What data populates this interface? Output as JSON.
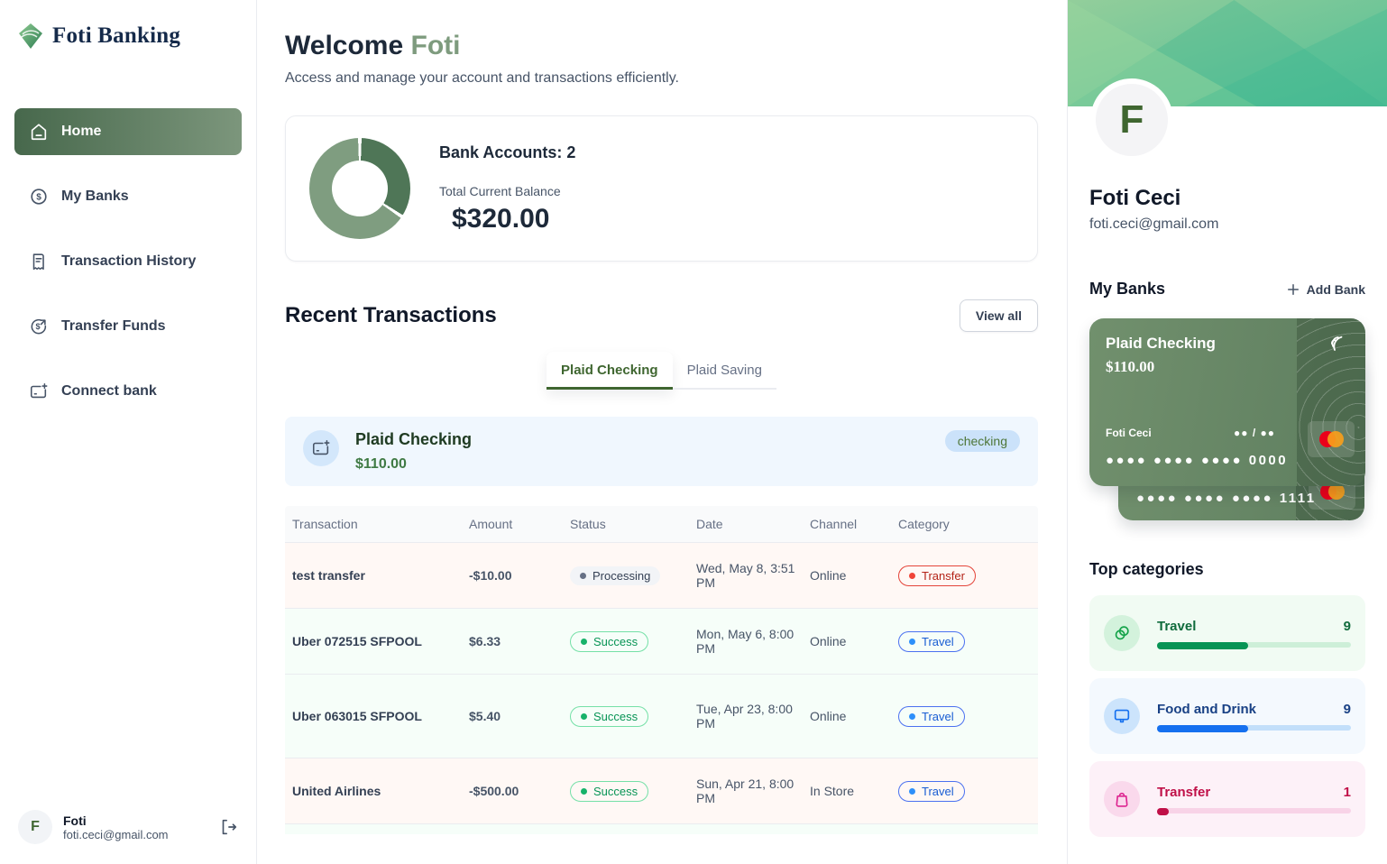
{
  "brand": {
    "name": "Foti Banking"
  },
  "sidebar": {
    "items": [
      {
        "label": "Home",
        "active": true
      },
      {
        "label": "My Banks",
        "active": false
      },
      {
        "label": "Transaction History",
        "active": false
      },
      {
        "label": "Transfer Funds",
        "active": false
      },
      {
        "label": "Connect bank",
        "active": false
      }
    ],
    "user": {
      "initial": "F",
      "name": "Foti",
      "email": "foti.ceci@gmail.com"
    }
  },
  "header": {
    "greeting": "Welcome",
    "username": "Foti",
    "subtitle": "Access and manage your account and transactions efficiently."
  },
  "balance_card": {
    "accounts_label": "Bank Accounts: 2",
    "balance_label": "Total Current Balance",
    "balance": "$320.00"
  },
  "chart_data": {
    "type": "pie",
    "title": "Total Current Balance donut",
    "labels": [
      "Plaid Checking",
      "Plaid Saving"
    ],
    "values": [
      110,
      210
    ],
    "colors": [
      "#4F7657",
      "#7F9D80"
    ],
    "total": 320
  },
  "transactions_section": {
    "title": "Recent Transactions",
    "view_all_label": "View all",
    "tabs": [
      {
        "label": "Plaid Checking",
        "active": true
      },
      {
        "label": "Plaid Saving",
        "active": false
      }
    ]
  },
  "account_banner": {
    "name": "Plaid Checking",
    "balance": "$110.00",
    "badge": "checking"
  },
  "table": {
    "columns": [
      "Transaction",
      "Amount",
      "Status",
      "Date",
      "Channel",
      "Category"
    ],
    "rows": [
      {
        "name": "test transfer",
        "amount": "-$10.00",
        "status": "Processing",
        "date": "Wed, May 8, 3:51 PM",
        "channel": "Online",
        "category": "Transfer"
      },
      {
        "name": "Uber 072515 SFPOOL",
        "amount": "$6.33",
        "status": "Success",
        "date": "Mon, May 6, 8:00 PM",
        "channel": "Online",
        "category": "Travel"
      },
      {
        "name": "Uber 063015 SFPOOL",
        "amount": "$5.40",
        "status": "Success",
        "date": "Tue, Apr 23, 8:00 PM",
        "channel": "Online",
        "category": "Travel"
      },
      {
        "name": "United Airlines",
        "amount": "-$500.00",
        "status": "Success",
        "date": "Sun, Apr 21, 8:00 PM",
        "channel": "In Store",
        "category": "Travel"
      }
    ]
  },
  "right_panel": {
    "user": {
      "initial": "F",
      "name": "Foti Ceci",
      "email": "foti.ceci@gmail.com"
    },
    "my_banks": {
      "title": "My Banks",
      "add_label": "Add Bank"
    },
    "card": {
      "name": "Plaid Checking",
      "balance": "$110.00",
      "holder": "Foti Ceci",
      "expiry": "●● / ●●",
      "number": "●●●● ●●●● ●●●● 0000",
      "back_number": "●●●● ●●●● ●●●● 1111"
    },
    "categories": {
      "title": "Top categories",
      "items": [
        {
          "label": "Travel",
          "count": 9,
          "pct": 47
        },
        {
          "label": "Food and Drink",
          "count": 9,
          "pct": 47
        },
        {
          "label": "Transfer",
          "count": 1,
          "pct": 6
        }
      ]
    }
  }
}
